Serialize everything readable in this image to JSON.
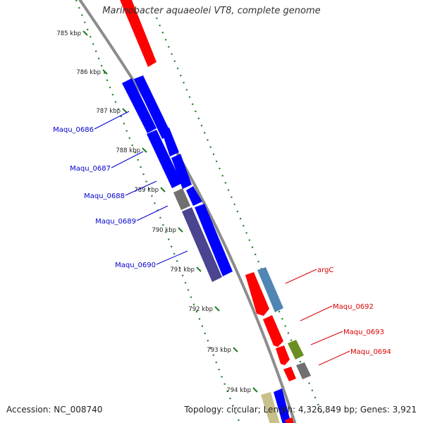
{
  "title": "Marinobacter aquaeolei VT8, complete genome",
  "footer": {
    "accession": "Accession: NC_008740",
    "summary": "Topology: circular; Length: 4,326,849 bp; Genes: 3,921"
  },
  "ruler": {
    "ticks": [
      "785 kbp",
      "786 kbp",
      "787 kbp",
      "788 kbp",
      "789 kbp",
      "790 kbp",
      "791 kbp",
      "792 kbp",
      "793 kbp",
      "794 kbp"
    ]
  },
  "gene_labels": [
    {
      "name": "Maqu_0686",
      "color": "#0000cc"
    },
    {
      "name": "Maqu_0687",
      "color": "#0000cc"
    },
    {
      "name": "Maqu_0688",
      "color": "#0000cc"
    },
    {
      "name": "Maqu_0689",
      "color": "#0000cc"
    },
    {
      "name": "Maqu_0690",
      "color": "#0000cc"
    },
    {
      "name": "argC",
      "color": "#dd0000"
    },
    {
      "name": "Maqu_0692",
      "color": "#dd0000"
    },
    {
      "name": "Maqu_0693",
      "color": "#dd0000"
    },
    {
      "name": "Maqu_0694",
      "color": "#dd0000"
    }
  ],
  "colors": {
    "backbone": "#8c8c8c",
    "ruler": "#1f7a1f",
    "blue_gene": "#0000ff",
    "red_gene": "#ff0000",
    "grey_gene": "#707070",
    "purple_gene": "#4b4490",
    "steelblue_gene": "#4f86b3",
    "olive_gene": "#6b8e23",
    "khaki_gene": "#c8c08a"
  }
}
